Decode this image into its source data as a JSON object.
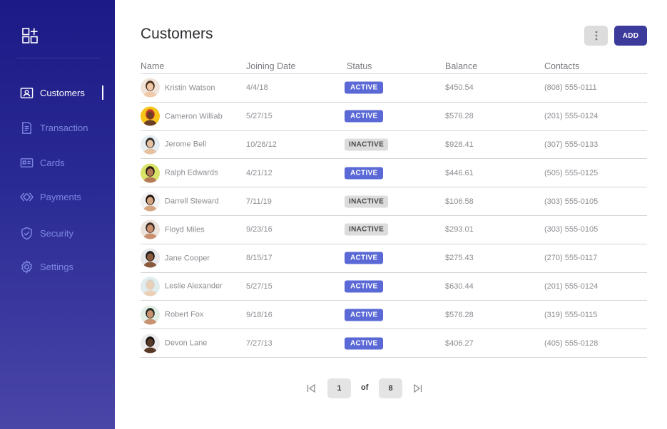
{
  "sidebar": {
    "logo_icon": "grid-plus-icon",
    "items": [
      {
        "label": "Customers",
        "icon": "customer-card-icon",
        "active": true
      },
      {
        "label": "Transaction",
        "icon": "document-icon",
        "active": false
      },
      {
        "label": "Cards",
        "icon": "id-card-icon",
        "active": false
      },
      {
        "label": "Payments",
        "icon": "diamond-arrows-icon",
        "active": false
      },
      {
        "label": "Security",
        "icon": "shield-icon",
        "active": false
      },
      {
        "label": "Settings",
        "icon": "gear-icon",
        "active": false
      }
    ]
  },
  "header": {
    "title": "Customers",
    "more_icon": "vertical-dots-icon",
    "add_label": "ADD"
  },
  "table": {
    "columns": [
      "Name",
      "Joining Date",
      "Status",
      "Balance",
      "Contacts"
    ],
    "rows": [
      {
        "name": "Kristin Watson",
        "date": "4/4/18",
        "status": "ACTIVE",
        "balance": "$450.54",
        "contact": "(808) 555-0111"
      },
      {
        "name": "Cameron Williab",
        "date": "5/27/15",
        "status": "ACTIVE",
        "balance": "$576.28",
        "contact": "(201) 555-0124"
      },
      {
        "name": "Jerome Bell",
        "date": "10/28/12",
        "status": "INACTIVE",
        "balance": "$928.41",
        "contact": "(307) 555-0133"
      },
      {
        "name": "Ralph Edwards",
        "date": "4/21/12",
        "status": "ACTIVE",
        "balance": "$446.61",
        "contact": "(505) 555-0125"
      },
      {
        "name": "Darrell Steward",
        "date": "7/11/19",
        "status": "INACTIVE",
        "balance": "$106.58",
        "contact": "(303) 555-0105"
      },
      {
        "name": "Floyd Miles",
        "date": "9/23/16",
        "status": "INACTIVE",
        "balance": "$293.01",
        "contact": "(303) 555-0105"
      },
      {
        "name": "Jane Cooper",
        "date": "8/15/17",
        "status": "ACTIVE",
        "balance": "$275.43",
        "contact": "(270) 555-0117"
      },
      {
        "name": "Leslie Alexander",
        "date": "5/27/15",
        "status": "ACTIVE",
        "balance": "$630.44",
        "contact": "(201) 555-0124"
      },
      {
        "name": "Robert Fox",
        "date": "9/18/16",
        "status": "ACTIVE",
        "balance": "$576.28",
        "contact": "(319) 555-0115"
      },
      {
        "name": "Devon Lane",
        "date": "7/27/13",
        "status": "ACTIVE",
        "balance": "$406.27",
        "contact": "(405) 555-0128"
      }
    ]
  },
  "pagination": {
    "current": "1",
    "of_label": "of",
    "total": "8",
    "first_icon": "first-page-icon",
    "last_icon": "last-page-icon"
  },
  "colors": {
    "sidebar_top": "#1c1a86",
    "sidebar_bottom": "#4a46a8",
    "accent": "#3c3a9a",
    "active_badge": "#5a69d6",
    "inactive_badge": "#dcdcdc",
    "nav_inactive_text": "#7d86e2"
  }
}
